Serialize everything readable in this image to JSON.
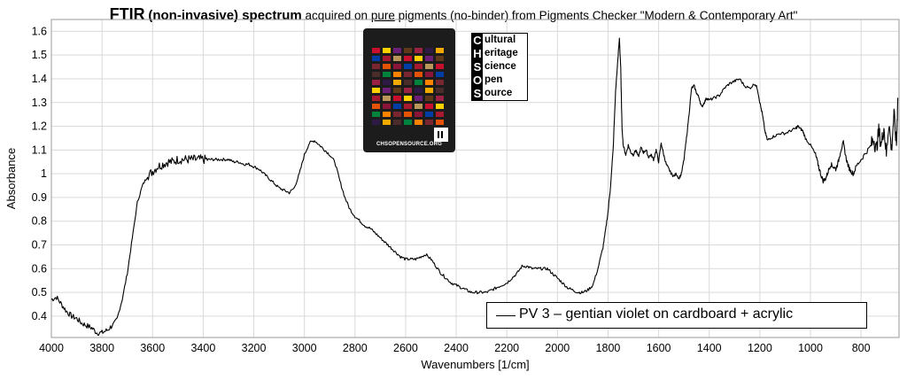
{
  "title": {
    "bold": "FTIR",
    "mid": "(non-invasive) spectrum",
    "pre": "acquired on",
    "underlined": "pure",
    "post": "pigments (no-binder) from Pigments Checker \"Modern & Contemporary Art\""
  },
  "logo": {
    "rows": [
      {
        "letter": "C",
        "rest": "ultural"
      },
      {
        "letter": "H",
        "rest": "eritage"
      },
      {
        "letter": "S",
        "rest": "cience"
      },
      {
        "letter": "O",
        "rest": "pen"
      },
      {
        "letter": "S",
        "rest": "ource"
      }
    ]
  },
  "card": {
    "footer": "CHSOPENSOURCE.ORG"
  },
  "chart_data": {
    "type": "line",
    "title": "",
    "xlabel": "Wavenumbers [1/cm]",
    "ylabel": "Absorbance",
    "xlim": [
      4000,
      650
    ],
    "ylim": [
      0.31,
      1.65
    ],
    "x_reversed": true,
    "grid": true,
    "legend_position": "bottom-right",
    "x_ticks": [
      4000,
      3800,
      3600,
      3400,
      3200,
      3000,
      2800,
      2600,
      2400,
      2200,
      2000,
      1800,
      1600,
      1400,
      1200,
      1000,
      800
    ],
    "y_ticks": [
      0.4,
      0.5,
      0.6,
      0.7,
      0.8,
      0.9,
      1,
      1.1,
      1.2,
      1.3,
      1.4,
      1.5,
      1.6
    ],
    "y_tick_labels": [
      "0.4",
      "0.5",
      "0.6",
      "0.7",
      "0.8",
      "0.9",
      "1",
      "1.1",
      "1.2",
      "1.3",
      "1.4",
      "1.5",
      "1.6"
    ],
    "series": [
      {
        "name": "PV 3 – gentian violet on cardboard + acrylic",
        "color": "#000000",
        "points": [
          [
            4000,
            0.47
          ],
          [
            3980,
            0.48
          ],
          [
            3960,
            0.45
          ],
          [
            3940,
            0.42
          ],
          [
            3920,
            0.4
          ],
          [
            3900,
            0.39
          ],
          [
            3880,
            0.37
          ],
          [
            3860,
            0.36
          ],
          [
            3840,
            0.35
          ],
          [
            3820,
            0.33
          ],
          [
            3800,
            0.33
          ],
          [
            3780,
            0.34
          ],
          [
            3760,
            0.36
          ],
          [
            3740,
            0.39
          ],
          [
            3720,
            0.47
          ],
          [
            3700,
            0.58
          ],
          [
            3680,
            0.73
          ],
          [
            3660,
            0.88
          ],
          [
            3640,
            0.95
          ],
          [
            3620,
            0.99
          ],
          [
            3600,
            1.01
          ],
          [
            3580,
            1.03
          ],
          [
            3560,
            1.04
          ],
          [
            3540,
            1.05
          ],
          [
            3520,
            1.05
          ],
          [
            3500,
            1.06
          ],
          [
            3480,
            1.06
          ],
          [
            3460,
            1.06
          ],
          [
            3440,
            1.06
          ],
          [
            3420,
            1.06
          ],
          [
            3400,
            1.06
          ],
          [
            3380,
            1.06
          ],
          [
            3360,
            1.06
          ],
          [
            3340,
            1.06
          ],
          [
            3320,
            1.06
          ],
          [
            3300,
            1.06
          ],
          [
            3280,
            1.05
          ],
          [
            3260,
            1.05
          ],
          [
            3240,
            1.04
          ],
          [
            3220,
            1.04
          ],
          [
            3200,
            1.03
          ],
          [
            3180,
            1.02
          ],
          [
            3160,
            1.0
          ],
          [
            3140,
            0.98
          ],
          [
            3120,
            0.96
          ],
          [
            3100,
            0.94
          ],
          [
            3080,
            0.93
          ],
          [
            3060,
            0.92
          ],
          [
            3040,
            0.94
          ],
          [
            3020,
            1.0
          ],
          [
            3000,
            1.08
          ],
          [
            2980,
            1.13
          ],
          [
            2960,
            1.14
          ],
          [
            2940,
            1.12
          ],
          [
            2920,
            1.1
          ],
          [
            2900,
            1.08
          ],
          [
            2880,
            1.05
          ],
          [
            2860,
            0.97
          ],
          [
            2840,
            0.9
          ],
          [
            2820,
            0.85
          ],
          [
            2800,
            0.82
          ],
          [
            2780,
            0.8
          ],
          [
            2760,
            0.78
          ],
          [
            2740,
            0.77
          ],
          [
            2720,
            0.75
          ],
          [
            2700,
            0.73
          ],
          [
            2680,
            0.71
          ],
          [
            2660,
            0.69
          ],
          [
            2640,
            0.67
          ],
          [
            2620,
            0.65
          ],
          [
            2600,
            0.64
          ],
          [
            2580,
            0.64
          ],
          [
            2560,
            0.64
          ],
          [
            2540,
            0.65
          ],
          [
            2520,
            0.66
          ],
          [
            2500,
            0.64
          ],
          [
            2480,
            0.61
          ],
          [
            2460,
            0.58
          ],
          [
            2440,
            0.56
          ],
          [
            2420,
            0.54
          ],
          [
            2400,
            0.53
          ],
          [
            2380,
            0.52
          ],
          [
            2360,
            0.51
          ],
          [
            2340,
            0.5
          ],
          [
            2320,
            0.5
          ],
          [
            2300,
            0.5
          ],
          [
            2280,
            0.5
          ],
          [
            2260,
            0.51
          ],
          [
            2240,
            0.52
          ],
          [
            2220,
            0.53
          ],
          [
            2200,
            0.54
          ],
          [
            2180,
            0.56
          ],
          [
            2160,
            0.58
          ],
          [
            2140,
            0.61
          ],
          [
            2120,
            0.61
          ],
          [
            2100,
            0.6
          ],
          [
            2080,
            0.6
          ],
          [
            2060,
            0.6
          ],
          [
            2040,
            0.6
          ],
          [
            2020,
            0.58
          ],
          [
            2000,
            0.56
          ],
          [
            1980,
            0.54
          ],
          [
            1960,
            0.52
          ],
          [
            1940,
            0.51
          ],
          [
            1920,
            0.5
          ],
          [
            1900,
            0.5
          ],
          [
            1880,
            0.51
          ],
          [
            1860,
            0.53
          ],
          [
            1840,
            0.6
          ],
          [
            1820,
            0.69
          ],
          [
            1810,
            0.76
          ],
          [
            1800,
            0.84
          ],
          [
            1790,
            0.95
          ],
          [
            1780,
            1.1
          ],
          [
            1770,
            1.35
          ],
          [
            1760,
            1.5
          ],
          [
            1755,
            1.57
          ],
          [
            1750,
            1.45
          ],
          [
            1745,
            1.2
          ],
          [
            1740,
            1.12
          ],
          [
            1730,
            1.08
          ],
          [
            1720,
            1.12
          ],
          [
            1710,
            1.09
          ],
          [
            1700,
            1.08
          ],
          [
            1690,
            1.1
          ],
          [
            1680,
            1.07
          ],
          [
            1670,
            1.11
          ],
          [
            1660,
            1.09
          ],
          [
            1650,
            1.1
          ],
          [
            1640,
            1.07
          ],
          [
            1630,
            1.08
          ],
          [
            1620,
            1.06
          ],
          [
            1610,
            1.1
          ],
          [
            1600,
            1.05
          ],
          [
            1590,
            1.13
          ],
          [
            1580,
            1.08
          ],
          [
            1570,
            1.04
          ],
          [
            1560,
            1.02
          ],
          [
            1550,
            1.0
          ],
          [
            1540,
            0.99
          ],
          [
            1530,
            1.0
          ],
          [
            1520,
            0.98
          ],
          [
            1510,
            1.0
          ],
          [
            1500,
            1.06
          ],
          [
            1490,
            1.15
          ],
          [
            1480,
            1.25
          ],
          [
            1470,
            1.36
          ],
          [
            1460,
            1.37
          ],
          [
            1450,
            1.34
          ],
          [
            1440,
            1.32
          ],
          [
            1430,
            1.28
          ],
          [
            1420,
            1.3
          ],
          [
            1410,
            1.32
          ],
          [
            1400,
            1.31
          ],
          [
            1380,
            1.32
          ],
          [
            1360,
            1.33
          ],
          [
            1340,
            1.36
          ],
          [
            1320,
            1.38
          ],
          [
            1300,
            1.39
          ],
          [
            1280,
            1.4
          ],
          [
            1260,
            1.37
          ],
          [
            1240,
            1.36
          ],
          [
            1220,
            1.38
          ],
          [
            1210,
            1.36
          ],
          [
            1200,
            1.3
          ],
          [
            1190,
            1.25
          ],
          [
            1180,
            1.18
          ],
          [
            1170,
            1.14
          ],
          [
            1160,
            1.15
          ],
          [
            1140,
            1.16
          ],
          [
            1120,
            1.17
          ],
          [
            1100,
            1.17
          ],
          [
            1080,
            1.18
          ],
          [
            1060,
            1.19
          ],
          [
            1050,
            1.2
          ],
          [
            1040,
            1.19
          ],
          [
            1030,
            1.18
          ],
          [
            1020,
            1.15
          ],
          [
            1000,
            1.12
          ],
          [
            980,
            1.08
          ],
          [
            970,
            1.04
          ],
          [
            960,
            1.0
          ],
          [
            950,
            0.97
          ],
          [
            940,
            0.98
          ],
          [
            930,
            1.01
          ],
          [
            920,
            1.04
          ],
          [
            910,
            1.03
          ],
          [
            900,
            1.02
          ],
          [
            890,
            1.05
          ],
          [
            880,
            1.1
          ],
          [
            870,
            1.13
          ],
          [
            860,
            1.07
          ],
          [
            850,
            1.03
          ],
          [
            840,
            1.01
          ],
          [
            830,
            1.0
          ],
          [
            820,
            1.03
          ],
          [
            800,
            1.06
          ],
          [
            780,
            1.09
          ],
          [
            760,
            1.12
          ],
          [
            750,
            1.15
          ],
          [
            740,
            1.1
          ],
          [
            730,
            1.18
          ],
          [
            720,
            1.12
          ],
          [
            710,
            1.2
          ],
          [
            700,
            1.08
          ],
          [
            690,
            1.22
          ],
          [
            680,
            1.1
          ],
          [
            670,
            1.25
          ],
          [
            660,
            1.12
          ],
          [
            655,
            1.32
          ]
        ]
      }
    ]
  }
}
